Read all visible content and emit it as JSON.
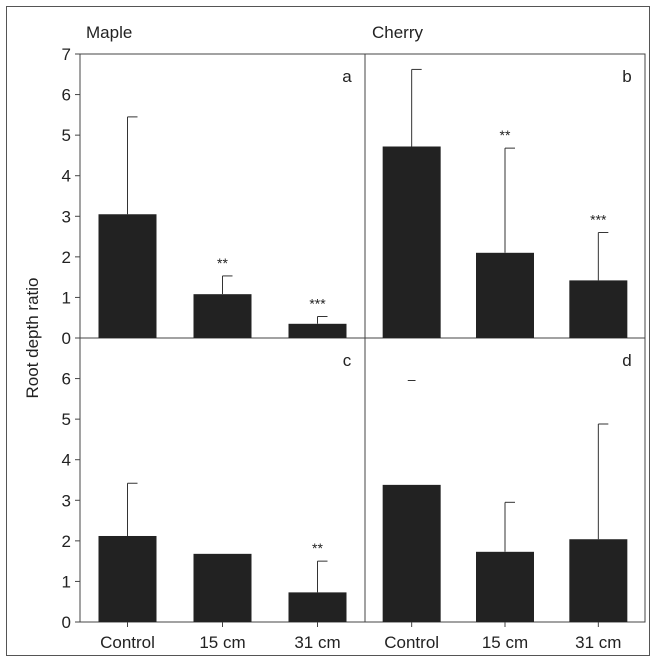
{
  "chart_data": {
    "type": "bar",
    "ylabel": "Root depth ratio",
    "categories": [
      "Control",
      "15 cm",
      "31 cm"
    ],
    "y_ticks_top": [
      "0",
      "1",
      "2",
      "3",
      "4",
      "5",
      "6",
      "7"
    ],
    "y_ticks_bottom": [
      "0",
      "1",
      "2",
      "3",
      "4",
      "5",
      "6"
    ],
    "ylim": [
      0,
      7
    ],
    "column_titles": [
      "Maple",
      "Cherry"
    ],
    "bar_color": "#222222",
    "panels": [
      {
        "letter": "a",
        "row": 0,
        "col": 0,
        "values": [
          3.05,
          1.08,
          0.35
        ],
        "error_upper": [
          5.45,
          1.53,
          0.53
        ],
        "significance": [
          "",
          "**",
          "***"
        ]
      },
      {
        "letter": "b",
        "row": 0,
        "col": 1,
        "values": [
          4.72,
          2.1,
          1.42
        ],
        "error_upper": [
          6.62,
          4.68,
          2.6
        ],
        "significance": [
          "",
          "**",
          "***"
        ]
      },
      {
        "letter": "c",
        "row": 1,
        "col": 0,
        "values": [
          2.12,
          1.68,
          0.73
        ],
        "error_upper": [
          3.42,
          null,
          1.5
        ],
        "significance": [
          "",
          "",
          "**"
        ]
      },
      {
        "letter": "d",
        "row": 1,
        "col": 1,
        "values": [
          3.38,
          1.73,
          2.04
        ],
        "error_upper": [
          null,
          2.95,
          4.88
        ],
        "significance": [
          "–",
          "",
          ""
        ]
      }
    ]
  }
}
